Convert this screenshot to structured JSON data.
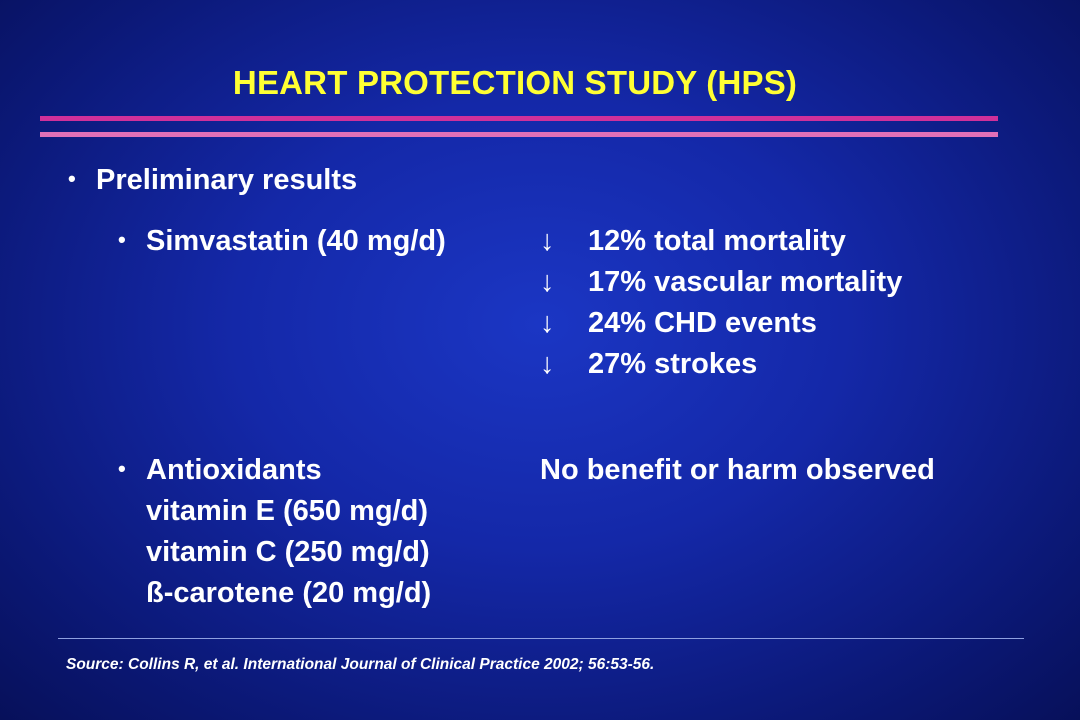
{
  "title": "HEART PROTECTION STUDY (HPS)",
  "bullet_char": "•",
  "arrow_char": "↓",
  "section": "Preliminary results",
  "simvastatin": {
    "label": "Simvastatin (40 mg/d)",
    "results": [
      "12% total mortality",
      "17% vascular mortality",
      "24% CHD events",
      "27% strokes"
    ]
  },
  "antioxidants": {
    "label": "Antioxidants",
    "items": [
      "vitamin E (650 mg/d)",
      "vitamin C (250 mg/d)",
      "ß-carotene (20 mg/d)"
    ],
    "result": "No benefit or harm observed"
  },
  "source": "Source:  Collins R, et al.  International Journal of Clinical Practice 2002; 56:53-56.",
  "colors": {
    "title": "#ffff33",
    "rule_top": "#d0309a",
    "rule_bottom": "#e070b8",
    "text": "#ffffff",
    "background": "#1428a8"
  }
}
